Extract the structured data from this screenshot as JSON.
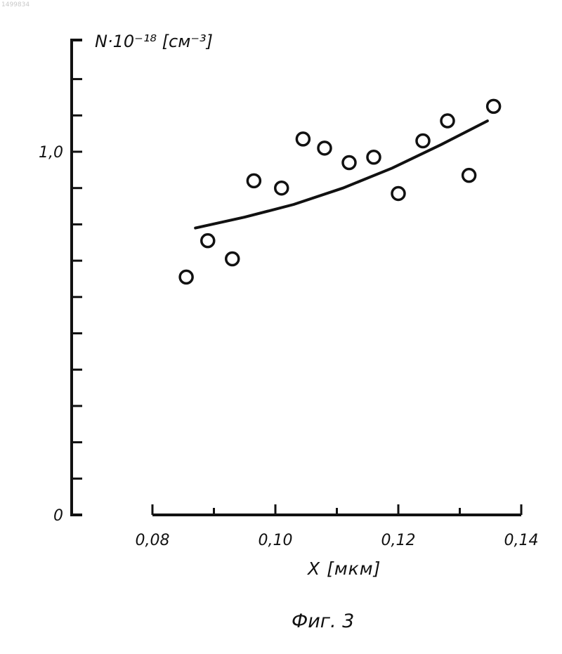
{
  "corner_mark": "1499834",
  "caption": "Фиг. 3",
  "chart_data": {
    "type": "scatter",
    "ylabel": "N·10⁻¹⁸ [см⁻³]",
    "xlabel": "X [мкм]",
    "xlim": [
      0.08,
      0.14
    ],
    "ylim": [
      0,
      1.2
    ],
    "x_ticks": [
      0.08,
      0.1,
      0.12,
      0.14
    ],
    "x_tick_labels": [
      "0,08",
      "0,10",
      "0,12",
      "0,14"
    ],
    "y_ticks": [
      0,
      1.0
    ],
    "y_tick_labels": [
      "0",
      "1,0"
    ],
    "grid": false,
    "points": [
      {
        "x": 0.0855,
        "y": 0.655
      },
      {
        "x": 0.089,
        "y": 0.755
      },
      {
        "x": 0.093,
        "y": 0.705
      },
      {
        "x": 0.0965,
        "y": 0.92
      },
      {
        "x": 0.101,
        "y": 0.9
      },
      {
        "x": 0.1045,
        "y": 1.035
      },
      {
        "x": 0.108,
        "y": 1.01
      },
      {
        "x": 0.112,
        "y": 0.97
      },
      {
        "x": 0.116,
        "y": 0.985
      },
      {
        "x": 0.12,
        "y": 0.885
      },
      {
        "x": 0.124,
        "y": 1.03
      },
      {
        "x": 0.128,
        "y": 1.085
      },
      {
        "x": 0.1315,
        "y": 0.935
      },
      {
        "x": 0.1355,
        "y": 1.125
      }
    ],
    "fit_curve": {
      "x": [
        0.087,
        0.095,
        0.103,
        0.111,
        0.119,
        0.127,
        0.1345
      ],
      "y": [
        0.79,
        0.82,
        0.855,
        0.9,
        0.955,
        1.02,
        1.085
      ]
    }
  }
}
